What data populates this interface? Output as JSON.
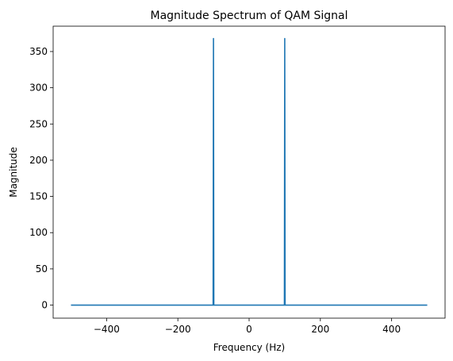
{
  "chart_data": {
    "type": "line",
    "title": "Magnitude Spectrum of QAM Signal",
    "xlabel": "Frequency (Hz)",
    "ylabel": "Magnitude",
    "xlim": [
      -550,
      550
    ],
    "ylim": [
      -18,
      385
    ],
    "xticks": [
      -400,
      -200,
      0,
      200,
      400
    ],
    "xtick_labels": [
      "−400",
      "−200",
      "0",
      "200",
      "400"
    ],
    "yticks": [
      0,
      50,
      100,
      150,
      200,
      250,
      300,
      350
    ],
    "ytick_labels": [
      "0",
      "50",
      "100",
      "150",
      "200",
      "250",
      "300",
      "350"
    ],
    "grid": false,
    "series": [
      {
        "color": "#1f77b4",
        "x": [
          -500,
          -101,
          -100,
          -99,
          99,
          100,
          101,
          500
        ],
        "y": [
          0,
          0,
          368,
          0,
          0,
          368,
          0,
          0
        ]
      }
    ]
  }
}
